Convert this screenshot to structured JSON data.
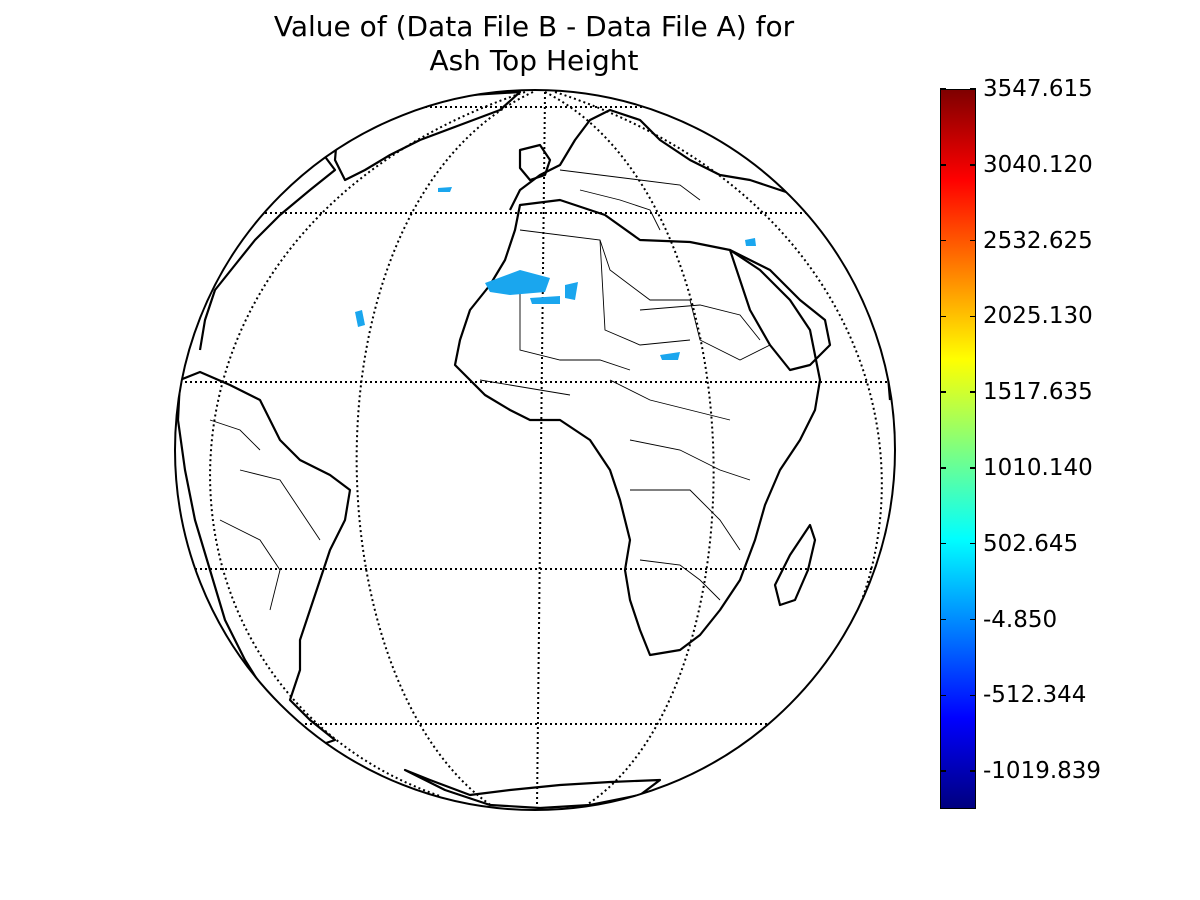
{
  "title": {
    "line1": "Value of (Data File B - Data File A) for",
    "line2": "Ash Top Height"
  },
  "colorbar": {
    "colormap": "jet",
    "min": -1273.586,
    "max": 3547.615,
    "ticks": [
      {
        "label": "3547.615",
        "value": 3547.615
      },
      {
        "label": "3040.120",
        "value": 3040.12
      },
      {
        "label": "2532.625",
        "value": 2532.625
      },
      {
        "label": "2025.130",
        "value": 2025.13
      },
      {
        "label": "1517.635",
        "value": 1517.635
      },
      {
        "label": "1010.140",
        "value": 1010.14
      },
      {
        "label": "502.645",
        "value": 502.645
      },
      {
        "label": "-4.850",
        "value": -4.85
      },
      {
        "label": "-512.344",
        "value": -512.344
      },
      {
        "label": "-1019.839",
        "value": -1019.839
      }
    ]
  },
  "map": {
    "projection": "orthographic",
    "center_lon": 0,
    "center_lat": 0,
    "graticule": "dotted",
    "data_color": "#1aa6ee"
  }
}
